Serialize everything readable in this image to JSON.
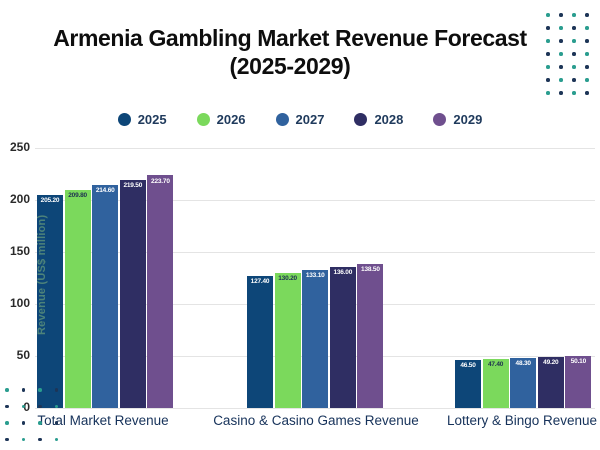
{
  "title": {
    "line1": "Armenia Gambling Market Revenue Forecast",
    "line2": "(2025-2029)"
  },
  "chart_data": {
    "type": "bar",
    "categories": [
      "Total Market Revenue",
      "Casino & Casino Games Revenue",
      "Lottery & Bingo Revenue"
    ],
    "series": [
      {
        "name": "2025",
        "color": "#0d4678",
        "label_color": "#ffffff",
        "values": [
          205.2,
          127.4,
          46.5
        ]
      },
      {
        "name": "2026",
        "color": "#7bd95c",
        "label_color": "#1d3050",
        "values": [
          209.8,
          130.2,
          47.4
        ]
      },
      {
        "name": "2027",
        "color": "#30629e",
        "label_color": "#ffffff",
        "values": [
          214.6,
          133.1,
          48.3
        ]
      },
      {
        "name": "2028",
        "color": "#2f2e63",
        "label_color": "#ffffff",
        "values": [
          219.5,
          136.0,
          49.2
        ]
      },
      {
        "name": "2029",
        "color": "#6f4f8e",
        "label_color": "#ffffff",
        "values": [
          223.7,
          138.5,
          50.1
        ]
      }
    ],
    "ylabel": "Revenue (US$ million)",
    "yticks": [
      0,
      50,
      100,
      150,
      200,
      250
    ],
    "ylim": [
      0,
      250
    ],
    "grid": true,
    "legend_position": "top",
    "value_label_decimals": 2
  },
  "decor": {
    "teal_dot_color": "#2a9d8f",
    "navy_dot_color": "#1d3557"
  }
}
